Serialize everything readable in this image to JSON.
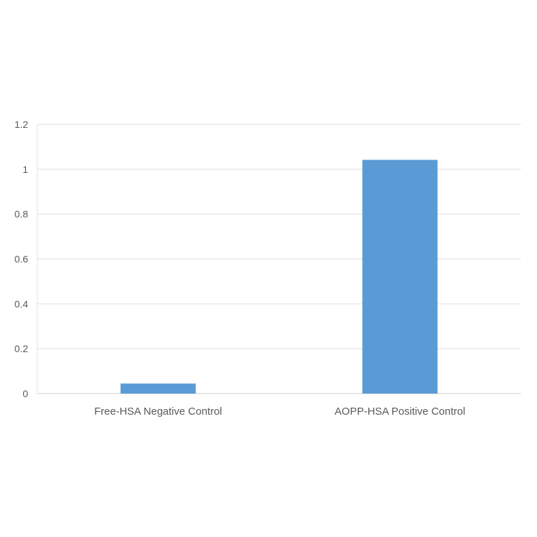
{
  "chart_data": {
    "type": "bar",
    "title": "",
    "xlabel": "",
    "ylabel": "",
    "categories": [
      "Free-HSA  Negative Control",
      "AOPP-HSA  Positive Control"
    ],
    "values": [
      0.045,
      1.042
    ],
    "ylim": [
      0,
      1.2
    ],
    "yticks": [
      "0",
      "0.2",
      "0.4",
      "0.6",
      "0.8",
      "1",
      "1.2"
    ],
    "grid": true,
    "legend": "none",
    "bar_color": "#5B9BD5"
  }
}
